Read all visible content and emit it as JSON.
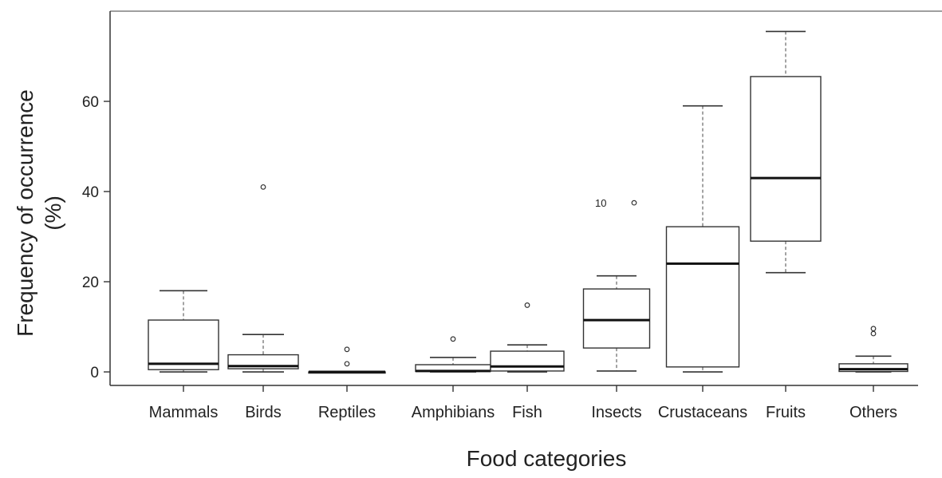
{
  "chart_data": {
    "type": "boxplot",
    "title": "",
    "xlabel": "Food categories",
    "ylabel_lines": [
      "Frequency of occurrence",
      "(%)"
    ],
    "ylim": [
      -3,
      80
    ],
    "yticks": [
      0,
      20,
      40,
      60
    ],
    "grid": false,
    "categories": [
      "Mammals",
      "Birds",
      "Reptiles",
      "Amphibians",
      "Fish",
      "Insects",
      "Crustaceans",
      "Fruits",
      "Others"
    ],
    "boxes": [
      {
        "category": "Mammals",
        "min": 0,
        "q1": 0.5,
        "median": 1.8,
        "q3": 11.5,
        "max": 18,
        "outliers": []
      },
      {
        "category": "Birds",
        "min": 0,
        "q1": 0.7,
        "median": 1.3,
        "q3": 3.8,
        "max": 8.3,
        "outliers": [
          41
        ]
      },
      {
        "category": "Reptiles",
        "min": 0,
        "q1": 0,
        "median": 0,
        "q3": 0,
        "max": 0,
        "outliers": [
          1.8,
          5
        ]
      },
      {
        "category": "Amphibians",
        "min": 0,
        "q1": 0.1,
        "median": 0.2,
        "q3": 1.6,
        "max": 3.2,
        "outliers": [
          7.3
        ]
      },
      {
        "category": "Fish",
        "min": 0,
        "q1": 0.2,
        "median": 1.2,
        "q3": 4.6,
        "max": 6,
        "outliers": [
          14.8
        ]
      },
      {
        "category": "Insects",
        "min": 0.2,
        "q1": 5.3,
        "median": 11.5,
        "q3": 18.4,
        "max": 21.3,
        "outliers": [
          37.5
        ]
      },
      {
        "category": "Crustaceans",
        "min": 0,
        "q1": 1.1,
        "median": 24,
        "q3": 32.2,
        "max": 59,
        "outliers": []
      },
      {
        "category": "Fruits",
        "min": 22,
        "q1": 29,
        "median": 43,
        "q3": 65.5,
        "max": 75.5,
        "outliers": []
      },
      {
        "category": "Others",
        "min": 0,
        "q1": 0.1,
        "median": 0.6,
        "q3": 1.8,
        "max": 3.5,
        "outliers": [
          8.5,
          9.6
        ]
      }
    ],
    "annotations": [
      {
        "category": "Insects",
        "text": "10"
      }
    ]
  }
}
